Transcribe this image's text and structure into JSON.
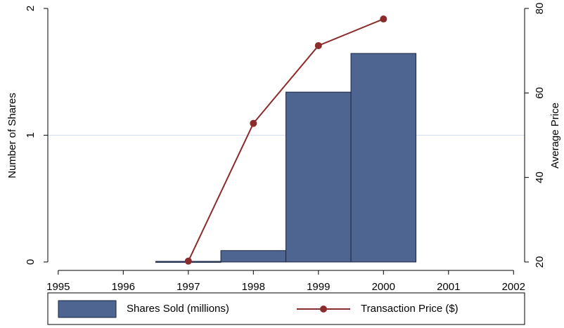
{
  "chart_data": {
    "type": "combo",
    "x": [
      1997,
      1998,
      1999,
      2000
    ],
    "series": [
      {
        "name": "Shares Sold (millions)",
        "type": "bar",
        "color": "#4f6591",
        "axis": "y",
        "values": [
          0.005,
          0.09,
          1.34,
          1.645
        ]
      },
      {
        "name": "Transaction Price ($)",
        "type": "line",
        "color": "#8b2b2b",
        "axis": "y2",
        "values": [
          20.2,
          52.8,
          71.2,
          77.5
        ]
      }
    ],
    "xlim": [
      1994.84,
      2002.17
    ],
    "xticks": [
      1995,
      1996,
      1997,
      1998,
      1999,
      2000,
      2001,
      2002
    ],
    "ylim": [
      0,
      2
    ],
    "yticks": [
      0,
      1,
      2
    ],
    "y2lim": [
      20,
      80
    ],
    "y2ticks": [
      20,
      40,
      60,
      80
    ],
    "ylabel": "Number of Shares",
    "y2label": "Average Price",
    "grid": true,
    "legend": "bottom"
  }
}
